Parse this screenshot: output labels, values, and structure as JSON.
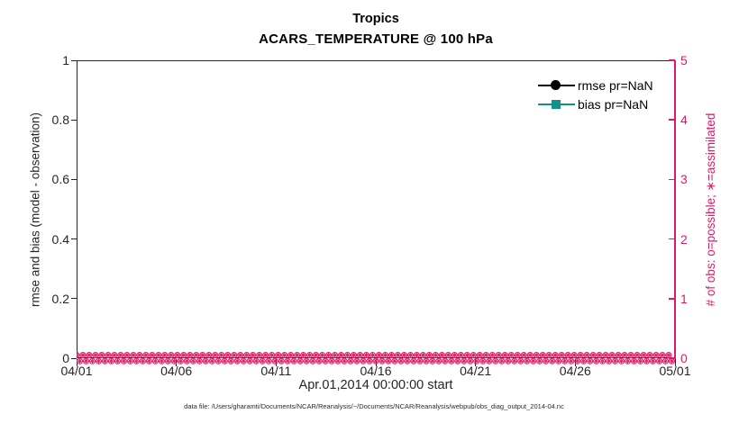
{
  "title": {
    "line1": "Tropics",
    "line2": "ACARS_TEMPERATURE @ 100 hPa"
  },
  "xlabel": "Apr.01,2014 00:00:00 start",
  "footer": "data file: /Users/gharamti/Documents/NCAR/Reanalysis/~/Documents/NCAR/Reanalysis/webpub/obs_diag_output_2014-04.nc",
  "left_axis": {
    "label": "rmse and bias (model - observation)",
    "ticks": [
      "0",
      "0.2",
      "0.4",
      "0.6",
      "0.8",
      "1"
    ],
    "range": [
      0,
      1
    ]
  },
  "right_axis": {
    "label": "# of obs: o=possible; ∗=assimilated",
    "ticks": [
      "0",
      "1",
      "2",
      "3",
      "4",
      "5"
    ],
    "range": [
      0,
      5
    ]
  },
  "x_axis": {
    "ticks": [
      "04/01",
      "04/06",
      "04/11",
      "04/16",
      "04/21",
      "04/26",
      "05/01"
    ]
  },
  "legend": {
    "items": [
      {
        "label": "rmse pr=NaN",
        "marker": "circle",
        "color": "#000000"
      },
      {
        "label": "bias pr=NaN",
        "marker": "square",
        "color": "#109289"
      }
    ]
  },
  "colors": {
    "axis": "#262626",
    "right_axis": "#DF1A64",
    "obs_markers": "#DF1A64",
    "rmse": "#000000",
    "bias": "#109289",
    "background": "#ffffff"
  },
  "obs_marker_band": {
    "symbol_possible": "o",
    "symbol_assimilated": "∗",
    "rows": 2,
    "per_row": 95,
    "value": 0
  },
  "chart_data": {
    "type": "line",
    "title": "Tropics",
    "subtitle": "ACARS_TEMPERATURE @ 100 hPa",
    "xlabel": "Apr.01,2014 00:00:00 start",
    "x_tick_labels": [
      "04/01",
      "04/06",
      "04/11",
      "04/16",
      "04/21",
      "04/26",
      "05/01"
    ],
    "left_axis": {
      "label": "rmse and bias (model - observation)",
      "range": [
        0,
        1
      ],
      "tick_step": 0.2
    },
    "right_axis": {
      "label": "# of obs: o=possible; ∗=assimilated",
      "range": [
        0,
        5
      ],
      "tick_step": 1
    },
    "grid": false,
    "legend_position": "top-right-inside",
    "series": [
      {
        "name": "rmse pr=NaN",
        "axis": "left",
        "marker": "circle",
        "color": "#000000",
        "values": [],
        "note": "all NaN, no curve drawn"
      },
      {
        "name": "bias pr=NaN",
        "axis": "left",
        "marker": "square",
        "color": "#109289",
        "values": [],
        "note": "all NaN, no curve drawn"
      },
      {
        "name": "# of possible obs (o)",
        "axis": "right",
        "marker": "o",
        "color": "#DF1A64",
        "constant_value": 0
      },
      {
        "name": "# of assimilated obs (∗)",
        "axis": "right",
        "marker": "∗",
        "color": "#DF1A64",
        "constant_value": 0
      }
    ],
    "note": "obs counts are 0 at every time step from 04/01 to 05/01; dense o/∗ marker band along y=0"
  }
}
